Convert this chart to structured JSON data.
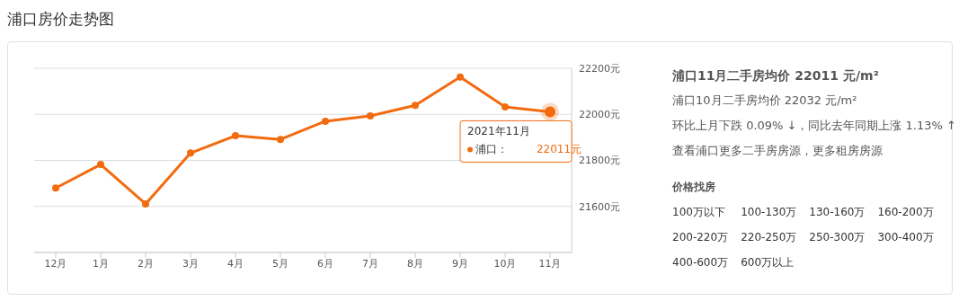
{
  "chart_data": {
    "type": "line",
    "title": "浦口房价走势图",
    "categories": [
      "12月",
      "1月",
      "2月",
      "3月",
      "4月",
      "5月",
      "6月",
      "7月",
      "8月",
      "9月",
      "10月",
      "11月"
    ],
    "series": [
      {
        "name": "浦口：",
        "color": "#f26b0f",
        "values": [
          21680,
          21782,
          21611,
          21832,
          21907,
          21891,
          21970,
          21993,
          22039,
          22162,
          22032,
          22011
        ],
        "value_labels": [
          null,
          null,
          null,
          null,
          null,
          null,
          null,
          null,
          null,
          null,
          null,
          "22011元"
        ]
      }
    ],
    "ylim": [
      21400,
      22200
    ],
    "yticks": [
      {
        "value": 21600,
        "label": "21600元"
      },
      {
        "value": 21800,
        "label": "21800元"
      },
      {
        "value": 22000,
        "label": "22000元"
      },
      {
        "value": 22200,
        "label": "22200元"
      }
    ],
    "grid": "y",
    "marker": "circle",
    "line_style": "solid",
    "annotations": [
      "2021年11月",
      "浦口11月二手房均价 22011 元/m²",
      "浦口10月二手房均价 22032 元/m²",
      "环比上月下跌 0.09% ↓，同比去年同期上涨 1.13% ↑",
      "查看浦口更多二手房房源，更多租房房源",
      "价格找房",
      "100万以下",
      "100-130万",
      "130-160万",
      "160-200万",
      "200-220万",
      "220-250万",
      "250-300万",
      "300-400万",
      "400-600万",
      "600万以上"
    ]
  }
}
